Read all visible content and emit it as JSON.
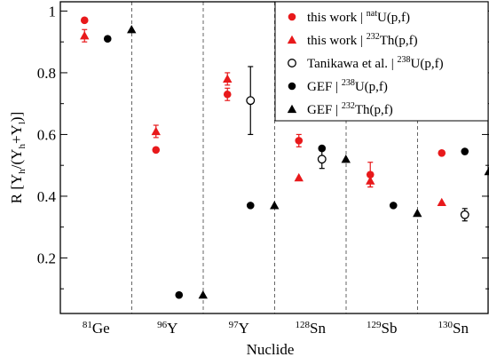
{
  "chart_data": {
    "type": "scatter",
    "title": "",
    "xlabel": "Nuclide",
    "ylabel": {
      "parts": [
        {
          "t": "R [Y"
        },
        {
          "t": "h",
          "sub": true
        },
        {
          "t": "/(Y"
        },
        {
          "t": "h",
          "sub": true
        },
        {
          "t": "+Y"
        },
        {
          "t": "l",
          "sub": true
        },
        {
          "t": ")]"
        }
      ]
    },
    "categories": [
      {
        "sup": "81",
        "name": "Ge"
      },
      {
        "sup": "96",
        "name": "Y"
      },
      {
        "sup": "97",
        "name": "Y"
      },
      {
        "sup": "128",
        "name": "Sn"
      },
      {
        "sup": "129",
        "name": "Sb"
      },
      {
        "sup": "130",
        "name": "Sn"
      }
    ],
    "ylim": [
      0.02,
      1.03
    ],
    "yticks": [
      {
        "v": 0.2,
        "label": "0.2"
      },
      {
        "v": 0.4,
        "label": "0.4"
      },
      {
        "v": 0.6,
        "label": "0.6"
      },
      {
        "v": 0.8,
        "label": "0.8"
      },
      {
        "v": 1.0,
        "label": "1"
      }
    ],
    "category_separators": "dashed",
    "legend_position": "top-right",
    "series": [
      {
        "legend": {
          "pre": "this work | ",
          "sup": "nat",
          "post": "U(p,f)"
        },
        "marker": "circle-filled",
        "color": "#e8191b",
        "points": [
          {
            "cat": 0,
            "y": 0.97,
            "err": 0.0
          },
          {
            "cat": 1,
            "y": 0.55,
            "err": 0.0
          },
          {
            "cat": 2,
            "y": 0.73,
            "err": 0.02
          },
          {
            "cat": 3,
            "y": 0.58,
            "err": 0.02
          },
          {
            "cat": 4,
            "y": 0.47,
            "err": 0.04
          },
          {
            "cat": 5,
            "y": 0.54,
            "err": 0.0
          }
        ]
      },
      {
        "legend": {
          "pre": "this work | ",
          "sup": "232",
          "post": "Th(p,f)"
        },
        "marker": "triangle-filled",
        "color": "#e8191b",
        "points": [
          {
            "cat": 0,
            "y": 0.92,
            "err": 0.02
          },
          {
            "cat": 1,
            "y": 0.61,
            "err": 0.02
          },
          {
            "cat": 2,
            "y": 0.78,
            "err": 0.02
          },
          {
            "cat": 3,
            "y": 0.46,
            "err": 0.0
          },
          {
            "cat": 4,
            "y": 0.45,
            "err": 0.02
          },
          {
            "cat": 5,
            "y": 0.38,
            "err": 0.0
          }
        ]
      },
      {
        "legend": {
          "pre": "Tanikawa et al. | ",
          "sup": "238",
          "post": "U(p,f)"
        },
        "marker": "circle-open",
        "color": "#000000",
        "points": [
          {
            "cat": 2,
            "y": 0.71,
            "err": 0.11
          },
          {
            "cat": 3,
            "y": 0.52,
            "err": 0.03
          },
          {
            "cat": 5,
            "y": 0.34,
            "err": 0.02
          }
        ]
      },
      {
        "legend": {
          "pre": "GEF | ",
          "sup": "238",
          "post": "U(p,f)"
        },
        "marker": "circle-filled",
        "color": "#000000",
        "points": [
          {
            "cat": 0,
            "y": 0.91,
            "err": 0.0
          },
          {
            "cat": 1,
            "y": 0.08,
            "err": 0.0
          },
          {
            "cat": 2,
            "y": 0.37,
            "err": 0.0
          },
          {
            "cat": 3,
            "y": 0.555,
            "err": 0.0
          },
          {
            "cat": 4,
            "y": 0.37,
            "err": 0.0
          },
          {
            "cat": 5,
            "y": 0.545,
            "err": 0.0
          }
        ]
      },
      {
        "legend": {
          "pre": "GEF | ",
          "sup": "232",
          "post": "Th(p,f)"
        },
        "marker": "triangle-filled",
        "color": "#000000",
        "points": [
          {
            "cat": 0,
            "y": 0.94,
            "err": 0.0
          },
          {
            "cat": 1,
            "y": 0.08,
            "err": 0.0
          },
          {
            "cat": 2,
            "y": 0.37,
            "err": 0.0
          },
          {
            "cat": 3,
            "y": 0.52,
            "err": 0.0
          },
          {
            "cat": 4,
            "y": 0.345,
            "err": 0.0
          },
          {
            "cat": 5,
            "y": 0.48,
            "err": 0.0
          }
        ]
      }
    ]
  }
}
